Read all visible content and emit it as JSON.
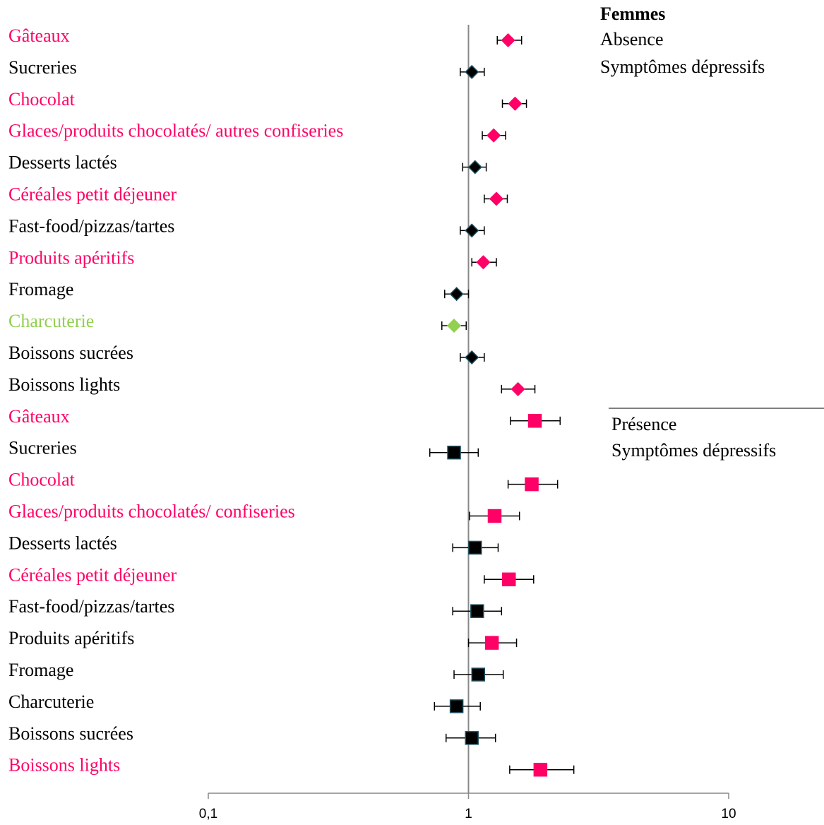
{
  "chart_data": {
    "type": "forest",
    "legend_title": "Femmes",
    "xscale": "log",
    "xlim": [
      0.1,
      10
    ],
    "xticks": [
      {
        "value": 0.1,
        "label": "0,1"
      },
      1,
      {
        "value": 10,
        "label": "10"
      }
    ],
    "reference_line": 1,
    "series": [
      {
        "name": "Absence",
        "description": "Symptômes dépressifs",
        "marker": "diamond",
        "categories": [
          "Gâteaux",
          "Sucreries",
          "Chocolat",
          "Glaces/produits chocolatés/ autres confiseries",
          "Desserts lactés",
          "Céréales petit déjeuner",
          "Fast-food/pizzas/tartes",
          "Produits apéritifs",
          "Fromage",
          "Charcuterie",
          "Boissons sucrées",
          "Boissons lights"
        ],
        "values": [
          1.42,
          1.03,
          1.51,
          1.25,
          1.06,
          1.28,
          1.03,
          1.14,
          0.9,
          0.88,
          1.03,
          1.55
        ],
        "lower": [
          1.29,
          0.93,
          1.35,
          1.13,
          0.95,
          1.15,
          0.93,
          1.03,
          0.81,
          0.79,
          0.93,
          1.34
        ],
        "upper": [
          1.6,
          1.15,
          1.67,
          1.39,
          1.17,
          1.41,
          1.15,
          1.28,
          1.0,
          0.98,
          1.15,
          1.8
        ],
        "label_colors": [
          "#ff0066",
          "#000000",
          "#ff0066",
          "#ff0066",
          "#000000",
          "#ff0066",
          "#000000",
          "#ff0066",
          "#000000",
          "#92d050",
          "#000000",
          "#000000"
        ],
        "marker_colors": [
          "#ff0066",
          "#000000",
          "#ff0066",
          "#ff0066",
          "#000000",
          "#ff0066",
          "#000000",
          "#ff0066",
          "#000000",
          "#92d050",
          "#000000",
          "#ff0066"
        ]
      },
      {
        "name": "Présence",
        "description": "Symptômes dépressifs",
        "marker": "square",
        "categories": [
          "Gâteaux",
          "Sucreries",
          "Chocolat",
          "Glaces/produits chocolatés/ confiseries",
          "Desserts lactés",
          "Céréales petit déjeuner",
          "Fast-food/pizzas/tartes",
          "Produits apéritifs",
          "Fromage",
          "Charcuterie",
          "Boissons sucrées",
          "Boissons lights"
        ],
        "values": [
          1.8,
          0.88,
          1.75,
          1.26,
          1.06,
          1.43,
          1.08,
          1.23,
          1.09,
          0.9,
          1.03,
          1.89
        ],
        "lower": [
          1.45,
          0.71,
          1.42,
          1.01,
          0.87,
          1.15,
          0.87,
          1.0,
          0.88,
          0.74,
          0.82,
          1.44
        ],
        "upper": [
          2.25,
          1.09,
          2.2,
          1.57,
          1.3,
          1.78,
          1.34,
          1.53,
          1.36,
          1.11,
          1.27,
          2.54
        ],
        "label_colors": [
          "#ff0066",
          "#000000",
          "#ff0066",
          "#ff0066",
          "#000000",
          "#ff0066",
          "#000000",
          "#000000",
          "#000000",
          "#000000",
          "#000000",
          "#ff0066"
        ],
        "marker_colors": [
          "#ff0066",
          "#000000",
          "#ff0066",
          "#ff0066",
          "#000000",
          "#ff0066",
          "#000000",
          "#ff0066",
          "#000000",
          "#000000",
          "#000000",
          "#ff0066"
        ]
      }
    ]
  }
}
